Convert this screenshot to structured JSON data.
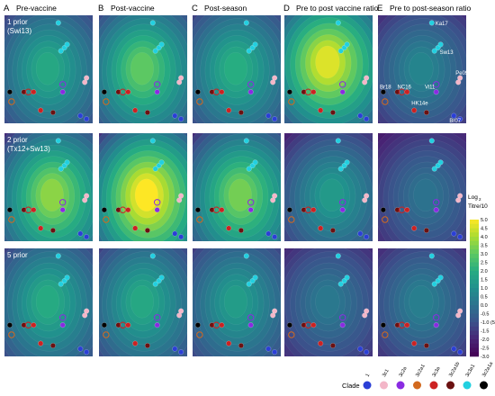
{
  "chart_data": {
    "type": "heatmap",
    "description_type": "antigenic landscape contour maps",
    "columns": [
      {
        "letter": "A",
        "title": "Pre-vaccine"
      },
      {
        "letter": "B",
        "title": "Post-vaccine"
      },
      {
        "letter": "C",
        "title": "Post-season"
      },
      {
        "letter": "D",
        "title": "Pre to post vaccine ratio"
      },
      {
        "letter": "E",
        "title": "Pre to post-season ratio"
      }
    ],
    "rows": [
      {
        "line1": "1 prior",
        "line2": "(Swi13)"
      },
      {
        "line1": "2 prior",
        "line2": "(Tx12+Sw13)"
      },
      {
        "line1": "5 prior",
        "line2": ""
      }
    ],
    "panel_peaks": [
      [
        1.8,
        3.0,
        2.0,
        4.6,
        0.6
      ],
      [
        3.6,
        5.0,
        3.3,
        1.3,
        0.0
      ],
      [
        1.9,
        1.8,
        1.4,
        0.2,
        0.4
      ]
    ],
    "strain_labels": [
      "Ka17",
      "Sw13",
      "Pe09",
      "Br18",
      "NC16",
      "Vi11",
      "HK14e",
      "Br07"
    ],
    "colorbar": {
      "title_line1": "Log",
      "title_sub": "2",
      "title_line2": "Titre/10",
      "tick_labels": [
        "5.0",
        "4.5",
        "4.0",
        "3.5",
        "3.0",
        "2.5",
        "2.0",
        "1.5",
        "1.0",
        "0.5",
        "0.0",
        "-0.5",
        "-1.0 (5)",
        "-1.5",
        "-2.0",
        "-2.5",
        "-3.0"
      ],
      "range": [
        -3.0,
        5.0
      ]
    },
    "legend": {
      "title": "Clade",
      "items": [
        {
          "label": "1",
          "color": "#2b3fd6"
        },
        {
          "label": "3c1",
          "color": "#f3b6c8"
        },
        {
          "label": "3c2a",
          "color": "#8a2be2"
        },
        {
          "label": "3c2a1",
          "color": "#d2691e"
        },
        {
          "label": "3c3a",
          "color": "#cc2222"
        },
        {
          "label": "3c2a1b",
          "color": "#6b1111"
        },
        {
          "label": "3c3a1",
          "color": "#22d0e0"
        },
        {
          "label": "3c2a1a",
          "color": "#000000"
        }
      ]
    }
  }
}
